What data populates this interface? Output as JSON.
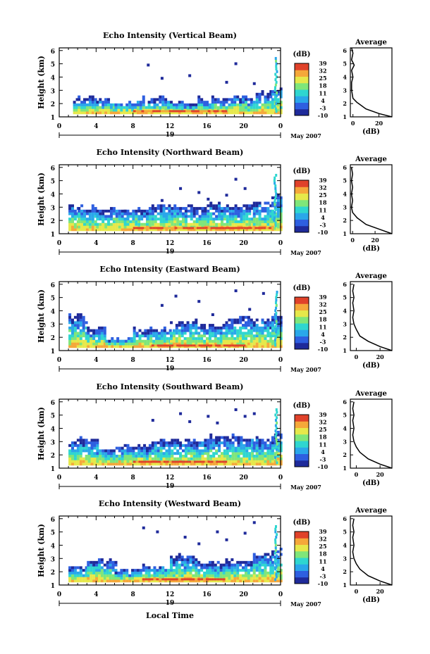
{
  "chart_data": {
    "type": "heatmap",
    "xlabel": "Local Time",
    "x_ticks": [
      "0",
      "4",
      "8",
      "12",
      "16",
      "20",
      "0"
    ],
    "date_label": "19",
    "month_label": "May 2007",
    "ylabel": "Height (km)",
    "y_ticks": [
      "1",
      "2",
      "3",
      "4",
      "5",
      "6"
    ],
    "ylim": [
      1,
      6.2
    ],
    "colorbar_title": "(dB)",
    "colorbar_ticks": [
      "39",
      "32",
      "25",
      "18",
      "11",
      "4",
      "-3",
      "-10"
    ],
    "colorbar_range": [
      -10,
      39
    ],
    "colormap": [
      "#1f2a9a",
      "#2e5fe0",
      "#2aa7ea",
      "#2fd6d0",
      "#7fe67a",
      "#e6e84a",
      "#f5a83a",
      "#e0422a"
    ],
    "avg_title": "Average",
    "avg_xlabel": "(dB)",
    "panels": [
      {
        "title": "Echo Intensity (Vertical Beam)",
        "avg_x_ticks": [
          "0",
          "20"
        ],
        "avg_xlim": [
          -2,
          30
        ],
        "avg_profile": [
          [
            30,
            1.0
          ],
          [
            20,
            1.25
          ],
          [
            10,
            1.6
          ],
          [
            3,
            2.1
          ],
          [
            0,
            2.4
          ],
          [
            -1,
            3.0
          ],
          [
            -1,
            3.6
          ],
          [
            0,
            4.0
          ],
          [
            -1,
            4.5
          ],
          [
            1,
            4.9
          ],
          [
            -1,
            5.3
          ],
          [
            0,
            5.8
          ],
          [
            -1,
            6.2
          ]
        ],
        "echo": [
          [
            1,
            1,
            2.7
          ],
          [
            1.5,
            2,
            2.1
          ],
          [
            2,
            4,
            2.3
          ],
          [
            4,
            6,
            2.2
          ],
          [
            6,
            9,
            2.0
          ],
          [
            9,
            12,
            2.3
          ],
          [
            12,
            15,
            2.0
          ],
          [
            15,
            18,
            2.3
          ],
          [
            18,
            21,
            2.4
          ],
          [
            21,
            23,
            2.7
          ],
          [
            23,
            24,
            3.0
          ]
        ],
        "plumes": [
          [
            23.4,
            5.4
          ]
        ],
        "intense": [
          [
            8,
            18,
            1.35
          ]
        ],
        "specks": [
          [
            9.5,
            4.8
          ],
          [
            14,
            4.0
          ],
          [
            18,
            3.5
          ],
          [
            11,
            3.8
          ],
          [
            21,
            3.4
          ],
          [
            19,
            4.9
          ]
        ]
      },
      {
        "title": "Echo Intensity (Northward Beam)",
        "avg_x_ticks": [
          "0",
          "20"
        ],
        "avg_xlim": [
          -2,
          35
        ],
        "avg_profile": [
          [
            35,
            1.0
          ],
          [
            25,
            1.3
          ],
          [
            12,
            1.7
          ],
          [
            4,
            2.2
          ],
          [
            0,
            2.6
          ],
          [
            -1,
            3.0
          ],
          [
            0,
            3.5
          ],
          [
            -1,
            4.0
          ],
          [
            0,
            4.5
          ],
          [
            -1,
            5.0
          ],
          [
            0,
            5.5
          ],
          [
            -1,
            6.0
          ]
        ],
        "echo": [
          [
            1,
            2,
            3.0
          ],
          [
            2,
            4,
            2.9
          ],
          [
            4,
            7,
            2.8
          ],
          [
            7,
            10,
            2.8
          ],
          [
            10,
            13,
            3.0
          ],
          [
            13,
            16,
            2.9
          ],
          [
            16,
            19,
            3.1
          ],
          [
            19,
            21,
            3.0
          ],
          [
            21,
            23,
            3.2
          ],
          [
            23,
            24,
            3.8
          ]
        ],
        "plumes": [
          [
            23.3,
            5.4
          ]
        ],
        "intense": [
          [
            8,
            23,
            1.35
          ]
        ],
        "specks": [
          [
            13,
            4.3
          ],
          [
            15,
            4.0
          ],
          [
            16,
            3.5
          ],
          [
            18,
            3.8
          ],
          [
            19,
            5.0
          ],
          [
            20,
            4.3
          ],
          [
            11,
            3.4
          ]
        ]
      },
      {
        "title": "Echo Intensity (Eastward Beam)",
        "avg_x_ticks": [
          "0",
          "20"
        ],
        "avg_xlim": [
          -5,
          30
        ],
        "avg_profile": [
          [
            30,
            1.0
          ],
          [
            20,
            1.3
          ],
          [
            10,
            1.7
          ],
          [
            3,
            2.1
          ],
          [
            0,
            2.6
          ],
          [
            -2,
            3.0
          ],
          [
            -3,
            3.5
          ],
          [
            -2,
            4.0
          ],
          [
            -3,
            4.6
          ],
          [
            -2,
            5.0
          ],
          [
            -3,
            5.5
          ],
          [
            -2,
            6.0
          ]
        ],
        "echo": [
          [
            1,
            3,
            3.5
          ],
          [
            3,
            5,
            2.6
          ],
          [
            5,
            8,
            1.8
          ],
          [
            8,
            12,
            2.5
          ],
          [
            12,
            15,
            3.1
          ],
          [
            15,
            18,
            2.8
          ],
          [
            18,
            21,
            3.4
          ],
          [
            21,
            23,
            3.2
          ],
          [
            23,
            24,
            3.6
          ]
        ],
        "plumes": [
          [
            23.4,
            5.5
          ]
        ],
        "intense": [
          [
            10,
            20,
            1.3
          ]
        ],
        "specks": [
          [
            11,
            4.3
          ],
          [
            12.5,
            5.0
          ],
          [
            15,
            4.6
          ],
          [
            16.5,
            3.6
          ],
          [
            19,
            5.4
          ],
          [
            20.5,
            4.0
          ],
          [
            22,
            5.2
          ]
        ]
      },
      {
        "title": "Echo Intensity (Southward Beam)",
        "avg_x_ticks": [
          "0",
          "20"
        ],
        "avg_xlim": [
          -5,
          30
        ],
        "avg_profile": [
          [
            30,
            1.0
          ],
          [
            20,
            1.3
          ],
          [
            10,
            1.7
          ],
          [
            3,
            2.2
          ],
          [
            0,
            2.6
          ],
          [
            -2,
            3.0
          ],
          [
            -3,
            3.5
          ],
          [
            -2,
            4.0
          ],
          [
            -3,
            4.6
          ],
          [
            -2,
            5.0
          ],
          [
            -3,
            5.5
          ],
          [
            -2,
            6.0
          ]
        ],
        "echo": [
          [
            1,
            4,
            3.1
          ],
          [
            4,
            7,
            2.3
          ],
          [
            7,
            10,
            2.6
          ],
          [
            10,
            13,
            3.1
          ],
          [
            13,
            16,
            3.0
          ],
          [
            16,
            19,
            3.3
          ],
          [
            19,
            21,
            3.3
          ],
          [
            21,
            23,
            3.1
          ],
          [
            23,
            24,
            3.5
          ]
        ],
        "plumes": [
          [
            23.4,
            5.4
          ]
        ],
        "intense": [
          [
            8,
            18,
            1.4
          ]
        ],
        "specks": [
          [
            10,
            4.5
          ],
          [
            13,
            5.0
          ],
          [
            14,
            4.4
          ],
          [
            16,
            4.8
          ],
          [
            17,
            4.3
          ],
          [
            19,
            5.3
          ],
          [
            20,
            4.8
          ],
          [
            21,
            5.0
          ]
        ]
      },
      {
        "title": "Echo Intensity (Westward Beam)",
        "avg_x_ticks": [
          "0",
          "20"
        ],
        "avg_xlim": [
          -5,
          30
        ],
        "avg_profile": [
          [
            30,
            1.0
          ],
          [
            20,
            1.3
          ],
          [
            10,
            1.7
          ],
          [
            3,
            2.2
          ],
          [
            0,
            2.6
          ],
          [
            -2,
            3.0
          ],
          [
            -3,
            3.5
          ],
          [
            -2,
            4.0
          ],
          [
            -3,
            4.6
          ],
          [
            -2,
            5.0
          ],
          [
            -3,
            5.5
          ],
          [
            -2,
            6.0
          ]
        ],
        "echo": [
          [
            1,
            3,
            2.2
          ],
          [
            3,
            6,
            2.8
          ],
          [
            6,
            9,
            2.0
          ],
          [
            9,
            12,
            2.4
          ],
          [
            12,
            15,
            3.1
          ],
          [
            15,
            18,
            2.6
          ],
          [
            18,
            21,
            2.8
          ],
          [
            21,
            23,
            3.2
          ],
          [
            23,
            24,
            3.6
          ]
        ],
        "plumes": [
          [
            23.4,
            5.5
          ]
        ],
        "intense": [
          [
            9,
            18,
            1.35
          ]
        ],
        "specks": [
          [
            9,
            5.2
          ],
          [
            10.5,
            4.9
          ],
          [
            13.5,
            4.5
          ],
          [
            15,
            4.0
          ],
          [
            17,
            4.9
          ],
          [
            18,
            4.3
          ],
          [
            20,
            4.8
          ],
          [
            21,
            5.6
          ]
        ]
      }
    ]
  }
}
